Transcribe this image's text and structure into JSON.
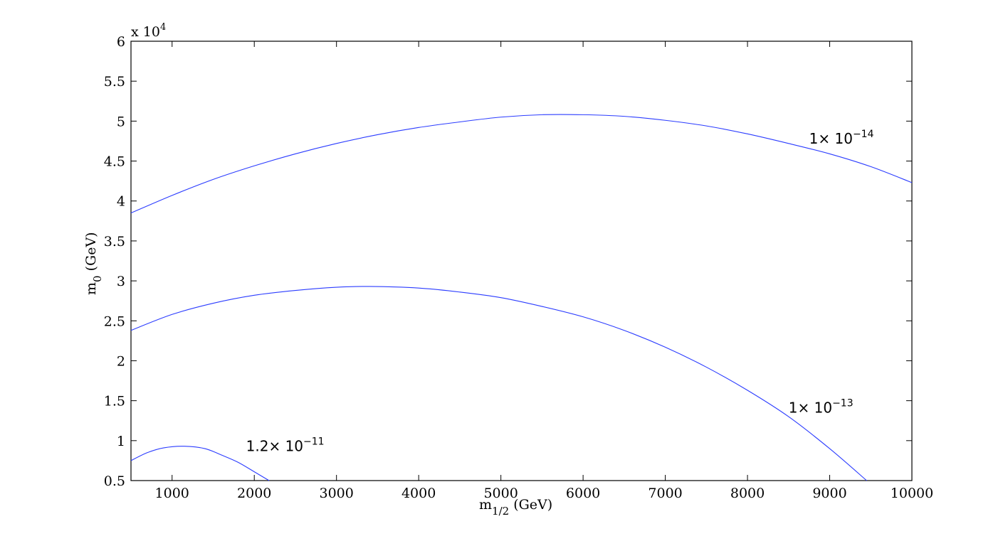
{
  "chart_data": {
    "type": "line",
    "title": "",
    "xlabel": {
      "main": "m",
      "sub": "1/2",
      "unit": " (GeV)"
    },
    "ylabel": {
      "main": "m",
      "sub": "0",
      "unit": " (GeV)"
    },
    "xlim": [
      500,
      10000
    ],
    "ylim": [
      5000,
      60000
    ],
    "x_ticks": [
      1000,
      2000,
      3000,
      4000,
      5000,
      6000,
      7000,
      8000,
      9000,
      10000
    ],
    "x_tick_labels": [
      "1000",
      "2000",
      "3000",
      "4000",
      "5000",
      "6000",
      "7000",
      "8000",
      "9000",
      "10000"
    ],
    "y_ticks": [
      5000,
      10000,
      15000,
      20000,
      25000,
      30000,
      35000,
      40000,
      45000,
      50000,
      55000,
      60000
    ],
    "y_tick_labels": [
      "0.5",
      "1",
      "1.5",
      "2",
      "2.5",
      "3",
      "3.5",
      "4",
      "4.5",
      "5",
      "5.5",
      "6"
    ],
    "y_exponent_label": {
      "base": "x 10",
      "exp": "4"
    },
    "grid": false,
    "line_color": "#2b3cff",
    "series": [
      {
        "label_base": "1× 10",
        "label_exp": "−14",
        "label_anchor": {
          "x": 8750,
          "y": 47200
        },
        "x": [
          500,
          1000,
          1500,
          2000,
          2500,
          3000,
          3500,
          4000,
          4500,
          5000,
          5500,
          6000,
          6500,
          7000,
          7500,
          8000,
          8500,
          9000,
          9500,
          10000
        ],
        "y": [
          38500,
          40700,
          42700,
          44400,
          45900,
          47200,
          48300,
          49200,
          49900,
          50500,
          50800,
          50800,
          50600,
          50100,
          49400,
          48400,
          47200,
          45900,
          44300,
          42300
        ]
      },
      {
        "label_base": "1× 10",
        "label_exp": "−13",
        "label_anchor": {
          "x": 8500,
          "y": 13500
        },
        "x": [
          500,
          1000,
          1500,
          2000,
          2500,
          3000,
          3400,
          4000,
          4500,
          5000,
          5500,
          6000,
          6500,
          7000,
          7500,
          8000,
          8500,
          9000,
          9450
        ],
        "y": [
          23800,
          25800,
          27200,
          28200,
          28800,
          29200,
          29300,
          29100,
          28600,
          27900,
          26800,
          25500,
          23800,
          21700,
          19200,
          16300,
          13000,
          9000,
          5000
        ]
      },
      {
        "label_base": "1.2× 10",
        "label_exp": "−11",
        "label_anchor": {
          "x": 1900,
          "y": 8700
        },
        "x": [
          500,
          700,
          900,
          1150,
          1400,
          1600,
          1800,
          2000,
          2180
        ],
        "y": [
          7500,
          8500,
          9100,
          9300,
          9000,
          8200,
          7300,
          6100,
          5000
        ]
      }
    ]
  }
}
